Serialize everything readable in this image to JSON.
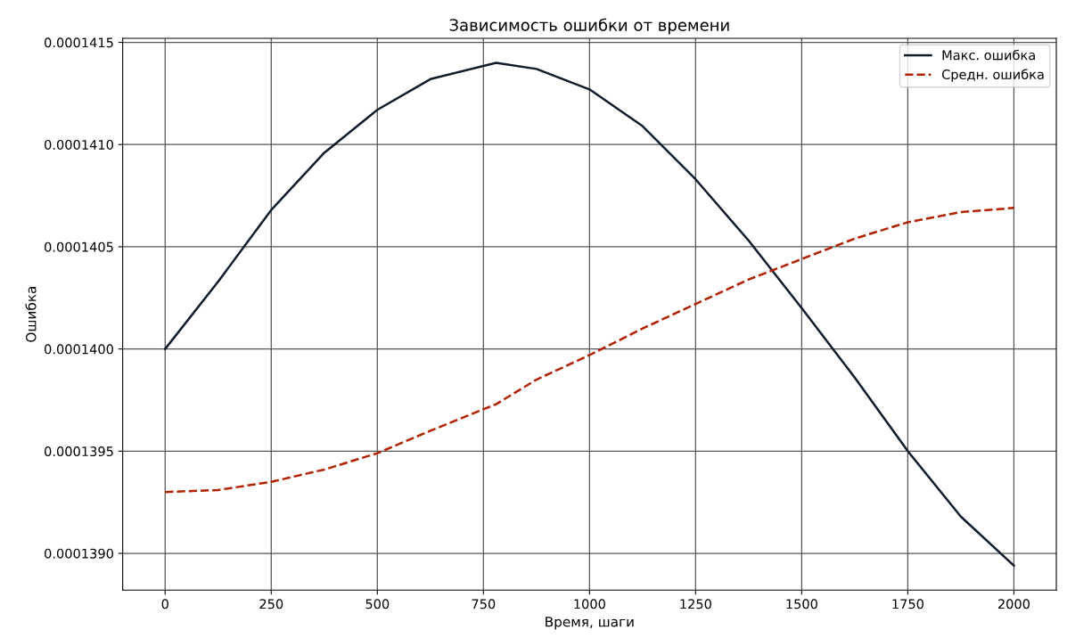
{
  "chart_data": {
    "type": "line",
    "title": "Зависимость ошибки от времени",
    "xlabel": "Время, шаги",
    "ylabel": "Ошибка",
    "x": [
      0,
      125,
      250,
      375,
      500,
      625,
      780,
      875,
      1000,
      1125,
      1250,
      1375,
      1500,
      1625,
      1750,
      1875,
      2000
    ],
    "series": [
      {
        "name": "Макс. ошибка",
        "color": "#0d1b2a",
        "line_style": "solid",
        "values": [
          0.00014,
          0.00014033,
          0.00014068,
          0.00014096,
          0.00014117,
          0.00014132,
          0.0001414,
          0.00014137,
          0.00014127,
          0.00014109,
          0.00014083,
          0.00014053,
          0.0001402,
          0.00013986,
          0.0001395,
          0.00013918,
          0.00013894
        ]
      },
      {
        "name": "Средн. ошибка",
        "color": "#b22200",
        "line_style": "dashed",
        "values": [
          0.0001393,
          0.00013931,
          0.00013935,
          0.00013941,
          0.00013949,
          0.0001396,
          0.00013973,
          0.00013985,
          0.00013997,
          0.0001401,
          0.00014022,
          0.00014034,
          0.00014044,
          0.00014054,
          0.00014062,
          0.00014067,
          0.00014069
        ]
      }
    ],
    "xlim": [
      -100,
      2100
    ],
    "xticks": [
      0,
      250,
      500,
      750,
      1000,
      1250,
      1500,
      1750,
      2000
    ],
    "ylim": [
      0.00013882,
      0.00014152
    ],
    "yticks": [
      {
        "value": 0.000139,
        "label": "0.0001390"
      },
      {
        "value": 0.0001395,
        "label": "0.0001395"
      },
      {
        "value": 0.00014,
        "label": "0.0001400"
      },
      {
        "value": 0.0001405,
        "label": "0.0001405"
      },
      {
        "value": 0.000141,
        "label": "0.0001410"
      },
      {
        "value": 0.0001415,
        "label": "0.0001415"
      }
    ],
    "grid": true,
    "legend": "top right"
  }
}
